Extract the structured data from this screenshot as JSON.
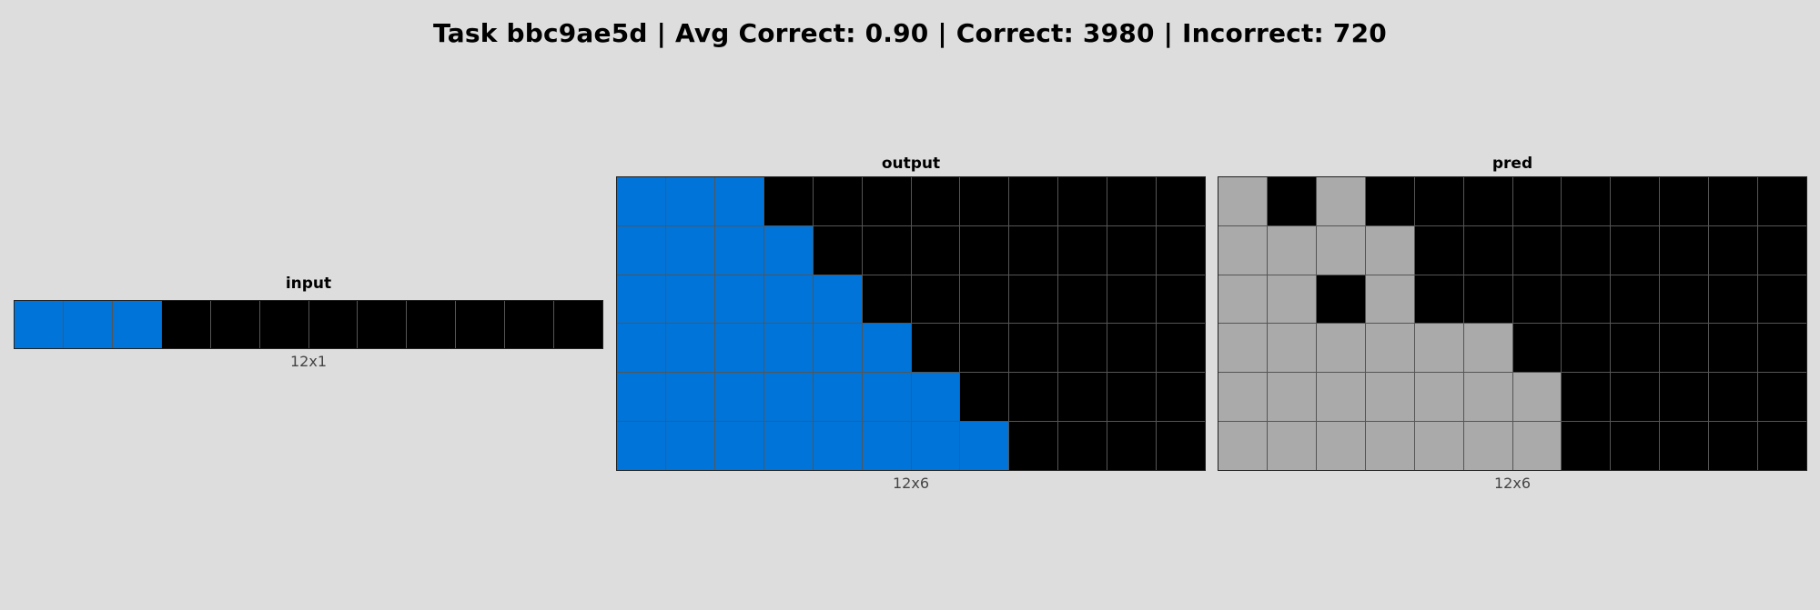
{
  "header": {
    "title": "Task bbc9ae5d | Avg Correct: 0.90 | Correct: 3980 | Incorrect: 720"
  },
  "palette": {
    "0": "#000000",
    "1": "#0074d9",
    "5": "#aaaaaa"
  },
  "panels": [
    {
      "id": "input",
      "title": "input",
      "dims": "12x1",
      "rows": [
        [
          1,
          1,
          1,
          0,
          0,
          0,
          0,
          0,
          0,
          0,
          0,
          0
        ]
      ]
    },
    {
      "id": "output",
      "title": "output",
      "dims": "12x6",
      "rows": [
        [
          1,
          1,
          1,
          0,
          0,
          0,
          0,
          0,
          0,
          0,
          0,
          0
        ],
        [
          1,
          1,
          1,
          1,
          0,
          0,
          0,
          0,
          0,
          0,
          0,
          0
        ],
        [
          1,
          1,
          1,
          1,
          1,
          0,
          0,
          0,
          0,
          0,
          0,
          0
        ],
        [
          1,
          1,
          1,
          1,
          1,
          1,
          0,
          0,
          0,
          0,
          0,
          0
        ],
        [
          1,
          1,
          1,
          1,
          1,
          1,
          1,
          0,
          0,
          0,
          0,
          0
        ],
        [
          1,
          1,
          1,
          1,
          1,
          1,
          1,
          1,
          0,
          0,
          0,
          0
        ]
      ]
    },
    {
      "id": "pred",
      "title": "pred",
      "dims": "12x6",
      "rows": [
        [
          5,
          0,
          5,
          0,
          0,
          0,
          0,
          0,
          0,
          0,
          0,
          0
        ],
        [
          5,
          5,
          5,
          5,
          0,
          0,
          0,
          0,
          0,
          0,
          0,
          0
        ],
        [
          5,
          5,
          0,
          5,
          0,
          0,
          0,
          0,
          0,
          0,
          0,
          0
        ],
        [
          5,
          5,
          5,
          5,
          5,
          5,
          0,
          0,
          0,
          0,
          0,
          0
        ],
        [
          5,
          5,
          5,
          5,
          5,
          5,
          5,
          0,
          0,
          0,
          0,
          0
        ],
        [
          5,
          5,
          5,
          5,
          5,
          5,
          5,
          0,
          0,
          0,
          0,
          0
        ]
      ]
    }
  ]
}
